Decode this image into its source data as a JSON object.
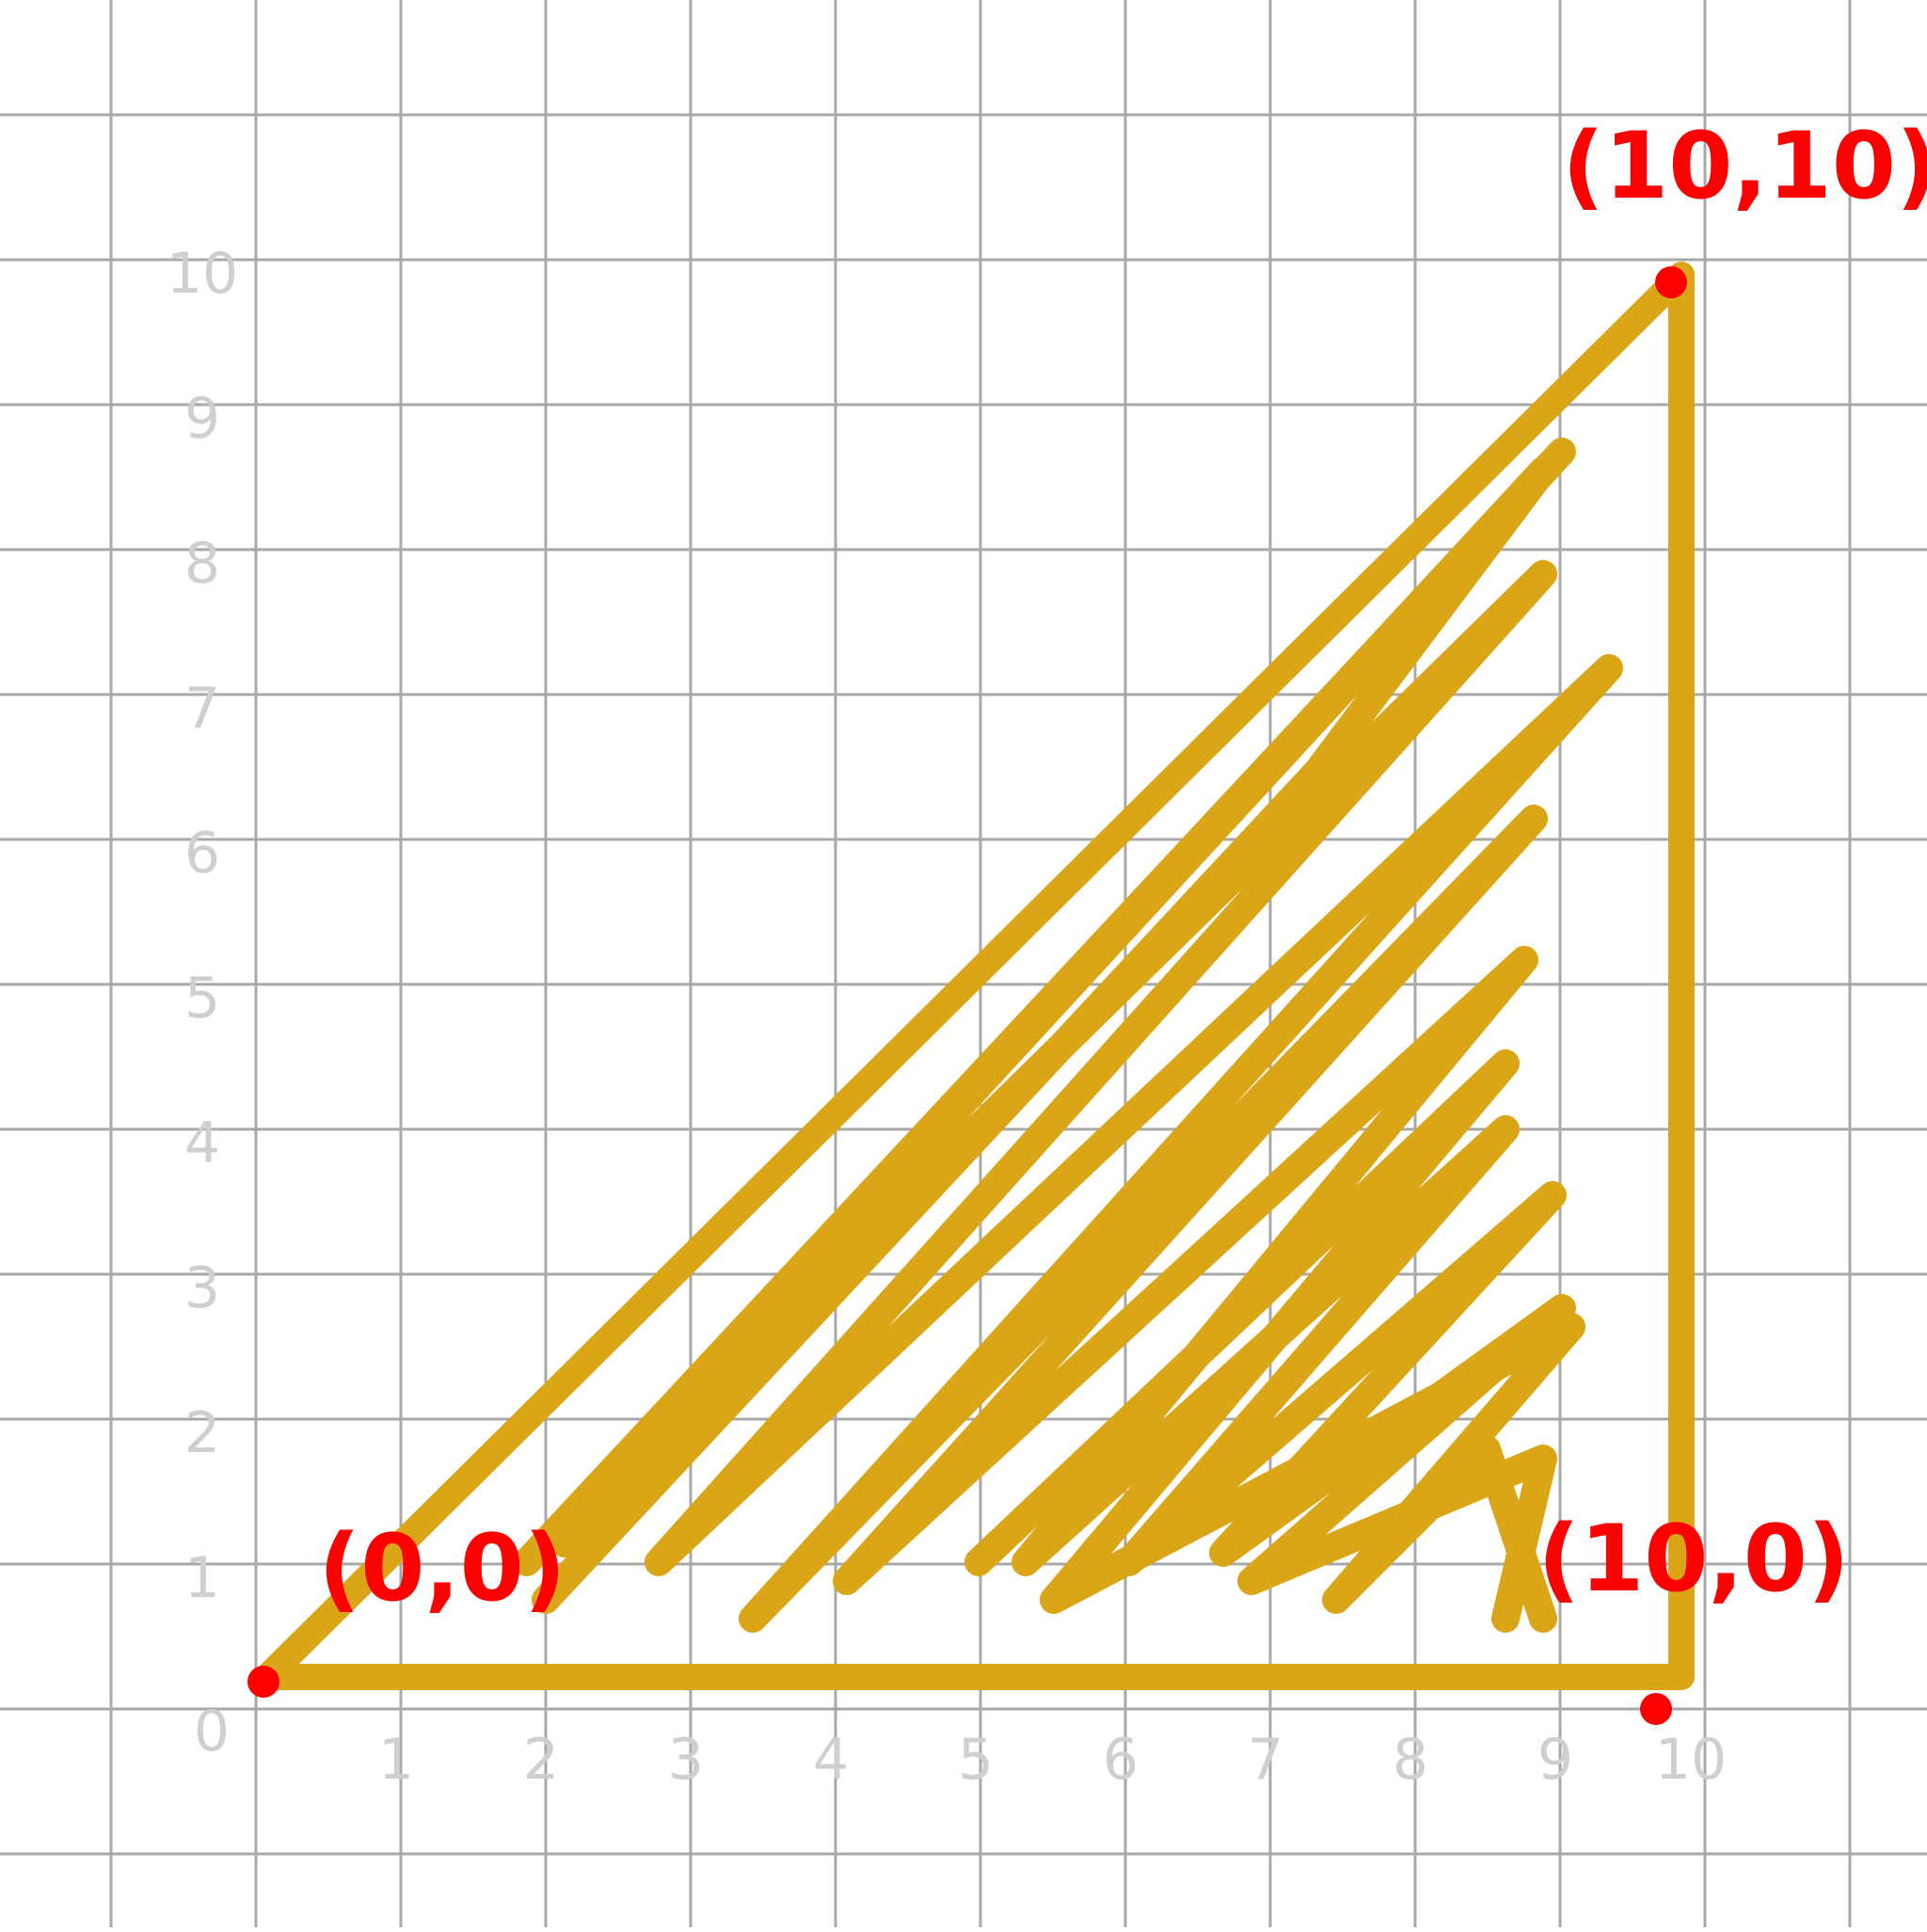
{
  "diagram": {
    "x_ticks": [
      "0",
      "1",
      "2",
      "3",
      "4",
      "5",
      "6",
      "7",
      "8",
      "9",
      "10"
    ],
    "y_ticks": [
      "0",
      "1",
      "2",
      "3",
      "4",
      "5",
      "6",
      "7",
      "8",
      "9",
      "10"
    ],
    "triangle": {
      "vertices": [
        {
          "label": "(0,0)",
          "x": 0,
          "y": 0
        },
        {
          "label": "(10,0)",
          "x": 10,
          "y": 0
        },
        {
          "label": "(10,10)",
          "x": 10,
          "y": 10
        }
      ],
      "fill_color": "#daa516",
      "fill_style": "scribble hatching"
    },
    "point_color": "#ff0000",
    "grid_color": "#a8a8a8",
    "tick_label_color": "#cfcfcf"
  }
}
